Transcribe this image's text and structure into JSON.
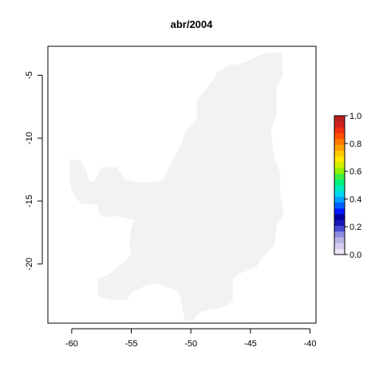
{
  "title": "abr/2004",
  "map": {
    "xlim": [
      -62,
      -39.5
    ],
    "ylim": [
      -24.7,
      -2.7
    ],
    "x_ticks": [
      -60,
      -55,
      -50,
      -45,
      -40
    ],
    "y_ticks": [
      -5,
      -10,
      -15,
      -20
    ],
    "x_tick_labels": [
      "-60",
      "-55",
      "-50",
      "-45",
      "-40"
    ],
    "y_tick_labels": [
      "-5",
      "-10",
      "-15",
      "-20"
    ],
    "region_value": 0.0,
    "region_fill": "#f2f2f2",
    "region_outline_lonlat": [
      [
        -43.5,
        -3.2
      ],
      [
        -42.3,
        -3.2
      ],
      [
        -42.3,
        -5.0
      ],
      [
        -42.8,
        -6.0
      ],
      [
        -42.8,
        -8.0
      ],
      [
        -43.3,
        -9.5
      ],
      [
        -43.0,
        -11.5
      ],
      [
        -42.5,
        -12.8
      ],
      [
        -42.5,
        -14.5
      ],
      [
        -42.2,
        -16.0
      ],
      [
        -42.8,
        -17.0
      ],
      [
        -43.0,
        -18.5
      ],
      [
        -44.0,
        -19.5
      ],
      [
        -44.5,
        -20.2
      ],
      [
        -45.2,
        -20.5
      ],
      [
        -46.0,
        -20.8
      ],
      [
        -46.5,
        -21.2
      ],
      [
        -46.5,
        -23.0
      ],
      [
        -47.5,
        -23.5
      ],
      [
        -48.2,
        -23.6
      ],
      [
        -49.2,
        -23.8
      ],
      [
        -49.8,
        -24.5
      ],
      [
        -50.5,
        -24.5
      ],
      [
        -50.8,
        -23.0
      ],
      [
        -51.0,
        -22.2
      ],
      [
        -52.0,
        -21.8
      ],
      [
        -53.0,
        -21.5
      ],
      [
        -54.0,
        -21.8
      ],
      [
        -55.0,
        -22.3
      ],
      [
        -55.3,
        -22.8
      ],
      [
        -56.0,
        -22.9
      ],
      [
        -57.0,
        -22.8
      ],
      [
        -57.8,
        -22.5
      ],
      [
        -57.8,
        -21.2
      ],
      [
        -57.0,
        -20.9
      ],
      [
        -56.2,
        -20.3
      ],
      [
        -55.0,
        -19.3
      ],
      [
        -55.2,
        -18.3
      ],
      [
        -55.0,
        -17.2
      ],
      [
        -54.8,
        -16.5
      ],
      [
        -56.3,
        -16.2
      ],
      [
        -57.3,
        -16.3
      ],
      [
        -57.7,
        -16.0
      ],
      [
        -57.8,
        -15.3
      ],
      [
        -59.2,
        -15.2
      ],
      [
        -59.6,
        -14.8
      ],
      [
        -60.0,
        -14.2
      ],
      [
        -60.2,
        -13.0
      ],
      [
        -60.2,
        -11.7
      ],
      [
        -59.3,
        -11.7
      ],
      [
        -58.8,
        -12.5
      ],
      [
        -58.5,
        -13.5
      ],
      [
        -58.0,
        -13.3
      ],
      [
        -57.5,
        -12.3
      ],
      [
        -56.2,
        -12.3
      ],
      [
        -55.5,
        -13.3
      ],
      [
        -54.5,
        -13.5
      ],
      [
        -53.0,
        -13.5
      ],
      [
        -52.3,
        -13.3
      ],
      [
        -51.8,
        -12.2
      ],
      [
        -50.8,
        -10.5
      ],
      [
        -50.5,
        -9.5
      ],
      [
        -49.5,
        -8.5
      ],
      [
        -49.5,
        -7.0
      ],
      [
        -48.2,
        -5.5
      ],
      [
        -47.8,
        -4.8
      ],
      [
        -47.0,
        -4.3
      ],
      [
        -45.5,
        -4.0
      ],
      [
        -44.5,
        -3.5
      ]
    ]
  },
  "legend": {
    "min": 0.0,
    "max": 1.0,
    "tick_values": [
      0.0,
      0.2,
      0.4,
      0.6,
      0.8,
      1.0
    ],
    "tick_labels": [
      "0.0",
      "0.2",
      "0.4",
      "0.6",
      "0.8",
      "1.0"
    ],
    "colors": [
      "#ece6f7",
      "#d6ccf0",
      "#b9b3e6",
      "#8f8de0",
      "#4a4acf",
      "#1616b8",
      "#0000a0",
      "#0018ff",
      "#0060ff",
      "#00a0ff",
      "#00d6f0",
      "#00ecc0",
      "#00f080",
      "#40f040",
      "#90f000",
      "#d0f000",
      "#ffe800",
      "#ffc800",
      "#ffa000",
      "#ff7800",
      "#ff5000",
      "#f03010",
      "#d02020",
      "#b82020"
    ]
  }
}
